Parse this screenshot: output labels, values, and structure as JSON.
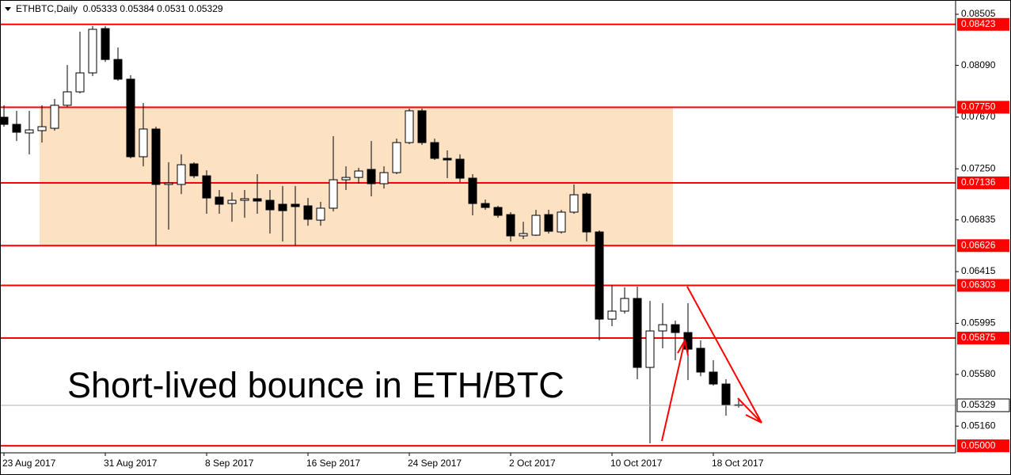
{
  "chart_data": {
    "type": "candlestick",
    "title": "ETHBTC,Daily",
    "annotation": "Short-lived bounce in ETH/BTC",
    "categories": [
      "23 Aug 2017",
      null,
      null,
      null,
      null,
      null,
      null,
      null,
      "31 Aug 2017",
      null,
      null,
      null,
      null,
      null,
      null,
      null,
      "8 Sep 2017",
      null,
      null,
      null,
      null,
      null,
      null,
      null,
      "16 Sep 2017",
      null,
      null,
      null,
      null,
      null,
      null,
      null,
      "24 Sep 2017",
      null,
      null,
      null,
      null,
      null,
      null,
      null,
      "2 Oct 2017",
      null,
      null,
      null,
      null,
      null,
      null,
      null,
      "10 Oct 2017",
      null,
      null,
      null,
      null,
      null,
      null,
      null,
      "18 Oct 2017",
      null,
      null
    ],
    "open": [
      0.07669,
      0.07611,
      0.07541,
      0.0756,
      0.07579,
      0.07766,
      0.07875,
      0.08029,
      0.08389,
      0.08138,
      0.07978,
      0.07348,
      0.07573,
      0.07123,
      0.07123,
      0.0729,
      0.07193,
      0.0702,
      0.06968,
      0.06994,
      0.07007,
      0.06994,
      0.06962,
      0.06962,
      0.06949,
      0.06833,
      0.0693,
      0.07161,
      0.0718,
      0.07245,
      0.07129,
      0.07219,
      0.07463,
      0.07721,
      0.07463,
      0.07335,
      0.07328,
      0.07174,
      0.06968,
      0.06936,
      0.06878,
      0.06705,
      0.06711,
      0.06878,
      0.06737,
      0.06898,
      0.07045,
      0.06737,
      0.06029,
      0.06094,
      0.06197,
      0.05637,
      0.05933,
      0.05984,
      0.0592,
      0.05792,
      0.05599,
      0.05502,
      0.05333
    ],
    "high": [
      0.07766,
      0.07721,
      0.07721,
      0.07766,
      0.07817,
      0.08093,
      0.08364,
      0.08409,
      0.08409,
      0.08235,
      0.0801,
      0.07785,
      0.07592,
      0.07303,
      0.07367,
      0.07303,
      0.07238,
      0.07078,
      0.07058,
      0.07078,
      0.07206,
      0.07078,
      0.0711,
      0.0711,
      0.07013,
      0.06981,
      0.07515,
      0.0727,
      0.07258,
      0.07476,
      0.0727,
      0.07495,
      0.0774,
      0.0774,
      0.07495,
      0.07399,
      0.07367,
      0.07206,
      0.07,
      0.06949,
      0.06898,
      0.0682,
      0.06917,
      0.06917,
      0.06917,
      0.07123,
      0.07058,
      0.0675,
      0.06306,
      0.06287,
      0.06293,
      0.06177,
      0.06158,
      0.06017,
      0.06158,
      0.05856,
      0.05695,
      0.05541,
      0.05384
    ],
    "low": [
      0.07592,
      0.07476,
      0.07367,
      0.07463,
      0.0756,
      0.07753,
      0.07862,
      0.08003,
      0.08119,
      0.07965,
      0.07335,
      0.0727,
      0.06627,
      0.06756,
      0.07045,
      0.07174,
      0.06885,
      0.06885,
      0.0682,
      0.06852,
      0.06885,
      0.06724,
      0.0666,
      0.06627,
      0.06788,
      0.06788,
      0.06904,
      0.07078,
      0.07129,
      0.07026,
      0.0709,
      0.07206,
      0.0745,
      0.07444,
      0.07322,
      0.07174,
      0.07142,
      0.06872,
      0.06917,
      0.06852,
      0.0666,
      0.06679,
      0.06705,
      0.06724,
      0.06724,
      0.06885,
      0.0666,
      0.05856,
      0.05972,
      0.06074,
      0.05541,
      0.0502,
      0.05792,
      0.05695,
      0.05534,
      0.05566,
      0.05489,
      0.05245,
      0.0531
    ],
    "close": [
      0.07611,
      0.07547,
      0.07566,
      0.07592,
      0.07766,
      0.07875,
      0.08029,
      0.08383,
      0.08138,
      0.07978,
      0.07348,
      0.07573,
      0.07123,
      0.07135,
      0.07283,
      0.07193,
      0.07013,
      0.06962,
      0.06994,
      0.07007,
      0.06988,
      0.06917,
      0.0691,
      0.06943,
      0.0684,
      0.0693,
      0.07161,
      0.0718,
      0.07232,
      0.07129,
      0.07219,
      0.07463,
      0.07721,
      0.07463,
      0.07335,
      0.07322,
      0.07174,
      0.06968,
      0.06936,
      0.06872,
      0.06705,
      0.06724,
      0.06872,
      0.06743,
      0.06898,
      0.07039,
      0.06737,
      0.06029,
      0.06094,
      0.06197,
      0.05637,
      0.05933,
      0.05984,
      0.0592,
      0.05785,
      0.05599,
      0.05502,
      0.05329,
      0.05329
    ],
    "up_color": "#ffffff",
    "down_color": "#000000",
    "ylim": [
      0.04943,
      0.08621
    ],
    "yticks": [
      0.08505,
      {
        "value": 0.0809,
        "label": "0.08090"
      },
      {
        "value": 0.0767,
        "label": "0.07670"
      },
      {
        "value": 0.0725,
        "label": "0.07250"
      },
      0.06835,
      0.06415,
      0.05995,
      {
        "value": 0.0558,
        "label": "0.05580"
      },
      {
        "value": 0.0516,
        "label": "0.05160"
      }
    ],
    "levels": [
      0.08423,
      {
        "value": 0.0775,
        "label": "0.07750"
      },
      0.07136,
      0.06626,
      0.06303,
      0.05875,
      {
        "value": 0.05,
        "label": "0.05000"
      }
    ],
    "level_color": "#ff0000",
    "zone_color": "#fde1c3",
    "grid": false
  }
}
